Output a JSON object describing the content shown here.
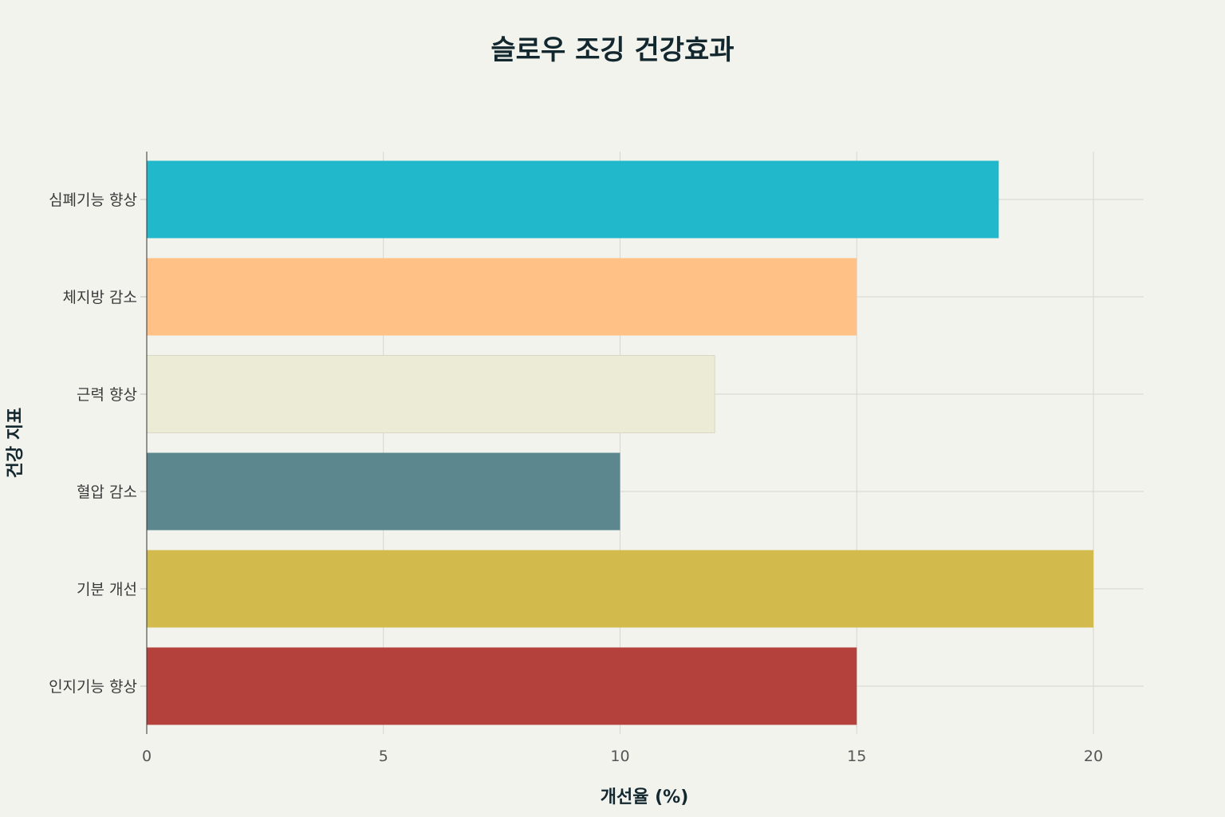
{
  "chart_data": {
    "type": "bar",
    "orientation": "horizontal",
    "title": "슬로우 조깅 건강효과",
    "xlabel": "개선율 (%)",
    "ylabel": "건강 지표",
    "xlim": [
      0,
      21
    ],
    "xticks": [
      0,
      5,
      10,
      15,
      20
    ],
    "grid": true,
    "categories": [
      "심폐기능 향상",
      "체지방 감소",
      "근력 향상",
      "혈압 감소",
      "기분 개선",
      "인지기능 향상"
    ],
    "values": [
      18,
      15,
      12,
      10,
      20,
      15
    ],
    "colors": [
      "#21b8cc",
      "#ffc185",
      "#ecebd5",
      "#5d878f",
      "#d2ba4c",
      "#b4413c"
    ]
  }
}
